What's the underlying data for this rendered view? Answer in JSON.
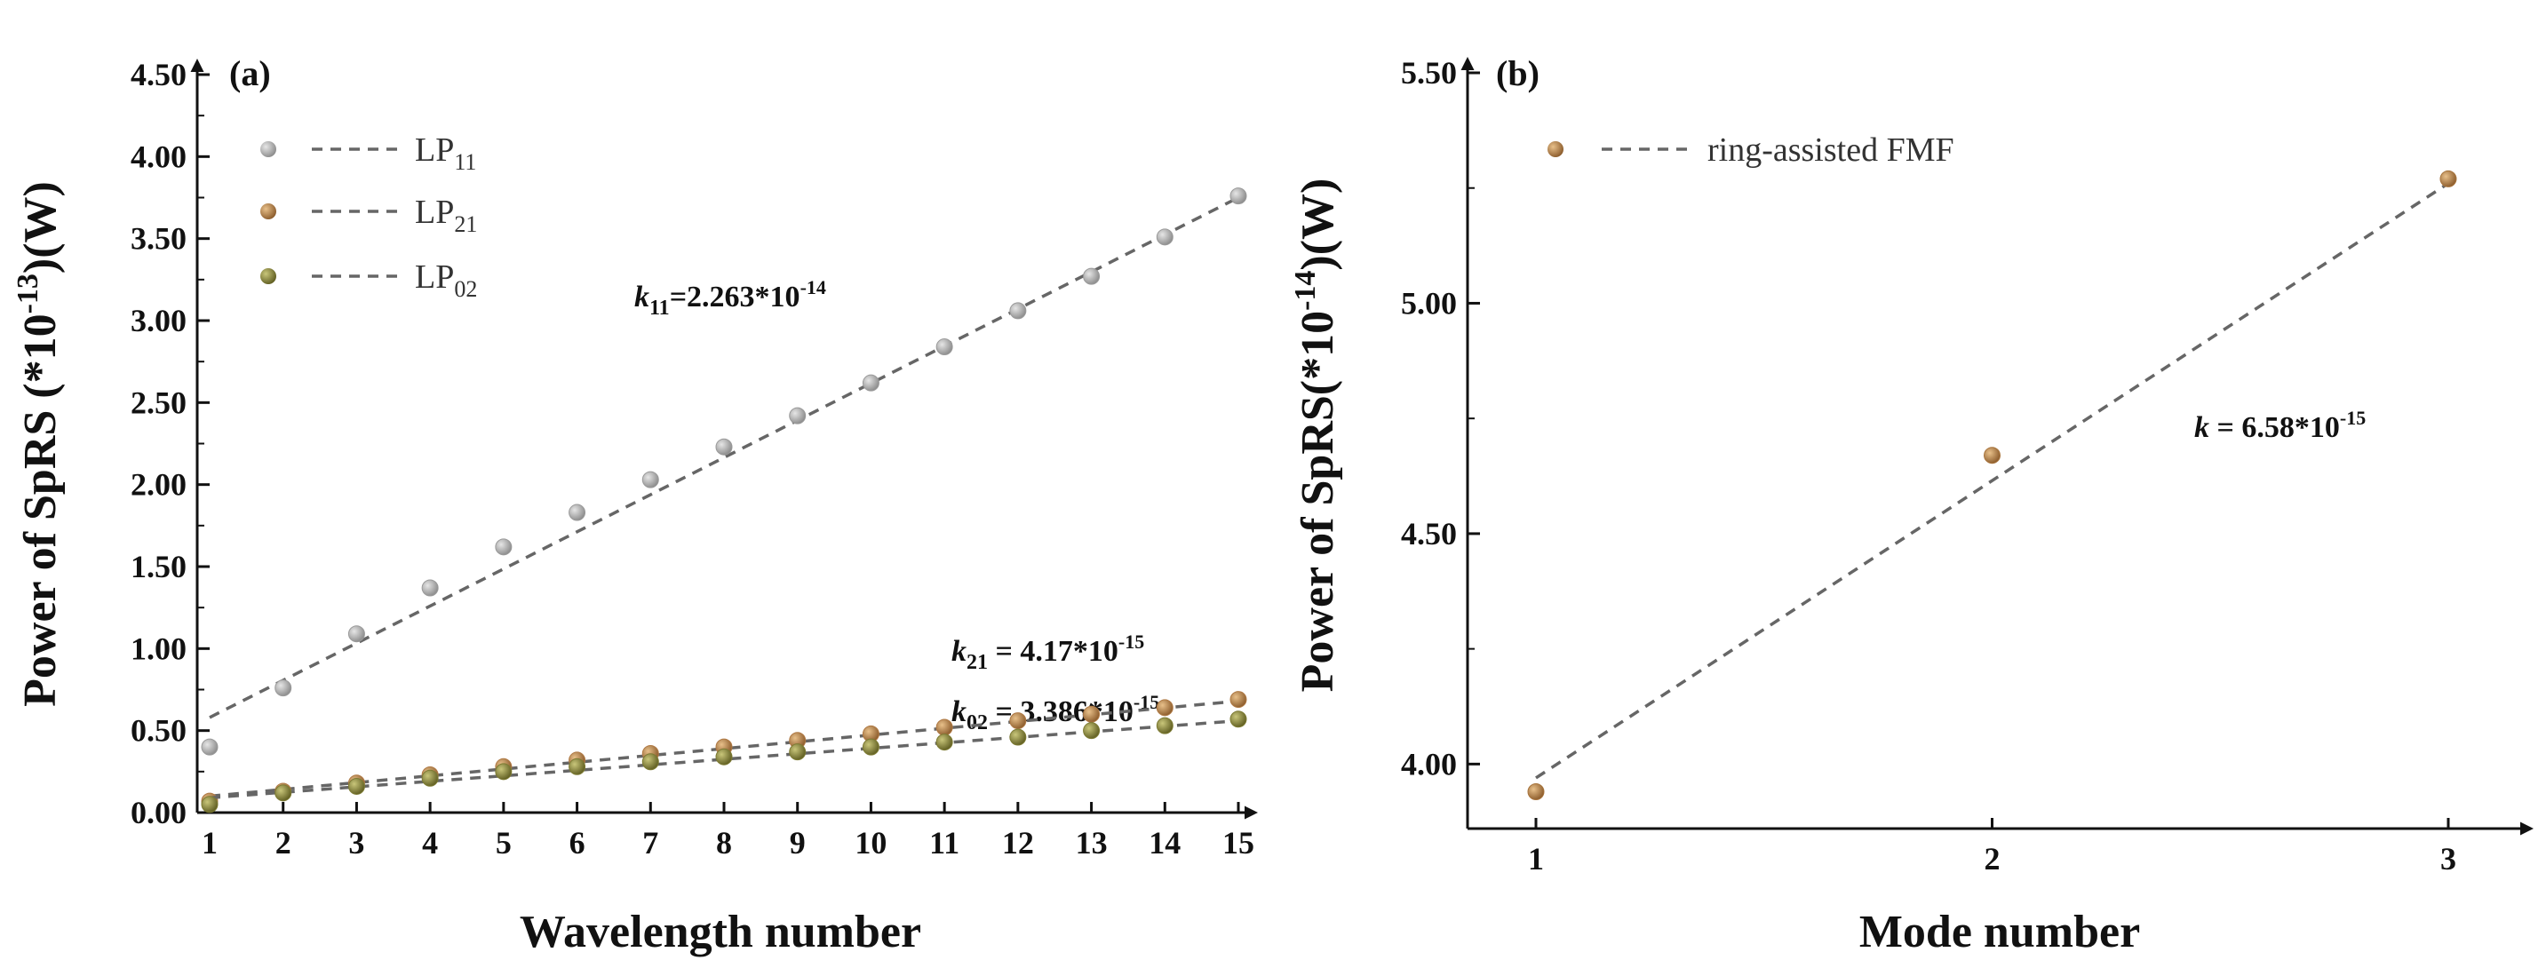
{
  "chart_data": [
    {
      "type": "scatter",
      "panel_label": "(a)",
      "xlabel": "Wavelength number",
      "ylabel": {
        "text": "Power of SpRS (*10",
        "sup": "-13",
        "suffix": ")(W)"
      },
      "xlim": [
        1,
        15
      ],
      "ylim": [
        0,
        4.5
      ],
      "x_ticks": [
        "1",
        "2",
        "3",
        "4",
        "5",
        "6",
        "7",
        "8",
        "9",
        "10",
        "11",
        "12",
        "13",
        "14",
        "15"
      ],
      "y_ticks": [
        "0.00",
        "0.50",
        "1.00",
        "1.50",
        "2.00",
        "2.50",
        "3.00",
        "3.50",
        "4.00",
        "4.50"
      ],
      "legend_position": "top-left",
      "x": [
        1,
        2,
        3,
        4,
        5,
        6,
        7,
        8,
        9,
        10,
        11,
        12,
        13,
        14,
        15
      ],
      "series": [
        {
          "name": "LP",
          "sub": "11",
          "color": "#9a9a9a",
          "values": [
            0.4,
            0.76,
            1.09,
            1.37,
            1.62,
            1.83,
            2.03,
            2.23,
            2.42,
            2.62,
            2.84,
            3.06,
            3.27,
            3.51,
            3.76
          ],
          "fit": [
            0.58,
            3.75
          ]
        },
        {
          "name": "LP",
          "sub": "21",
          "color": "#b07a45",
          "values": [
            0.07,
            0.13,
            0.18,
            0.23,
            0.28,
            0.32,
            0.36,
            0.4,
            0.44,
            0.48,
            0.52,
            0.56,
            0.6,
            0.64,
            0.69
          ],
          "fit": [
            0.1,
            0.68
          ]
        },
        {
          "name": "LP",
          "sub": "02",
          "color": "#7d7b33",
          "values": [
            0.05,
            0.12,
            0.16,
            0.21,
            0.25,
            0.28,
            0.31,
            0.34,
            0.37,
            0.4,
            0.43,
            0.46,
            0.5,
            0.53,
            0.57
          ],
          "fit": [
            0.09,
            0.56
          ]
        }
      ],
      "annotations": [
        {
          "k": "k",
          "sub": "11",
          "text": "=2.263*10",
          "sup": "-14"
        },
        {
          "k": "k",
          "sub": "21",
          "text": " = 4.17*10",
          "sup": "-15"
        },
        {
          "k": "k",
          "sub": "02",
          "text": " = 3.386*10",
          "sup": "-15"
        }
      ]
    },
    {
      "type": "scatter",
      "panel_label": "(b)",
      "xlabel": "Mode number",
      "ylabel": {
        "text": "Power of SpRS(*10",
        "sup": "-14",
        "suffix": ")(W)"
      },
      "xlim": [
        1,
        3
      ],
      "ylim": [
        3.86,
        5.5
      ],
      "x_ticks": [
        "1",
        "2",
        "3"
      ],
      "y_ticks": [
        "4.00",
        "4.50",
        "5.00",
        "5.50"
      ],
      "legend_position": "top-left",
      "x": [
        1,
        2,
        3
      ],
      "series": [
        {
          "name": "ring-assisted FMF",
          "color": "#a8743c",
          "values": [
            3.94,
            4.67,
            5.27
          ],
          "fit": [
            3.97,
            5.26
          ]
        }
      ],
      "annotations": [
        {
          "k": "k",
          "text": " = 6.58*10",
          "sup": "-15"
        }
      ]
    }
  ]
}
